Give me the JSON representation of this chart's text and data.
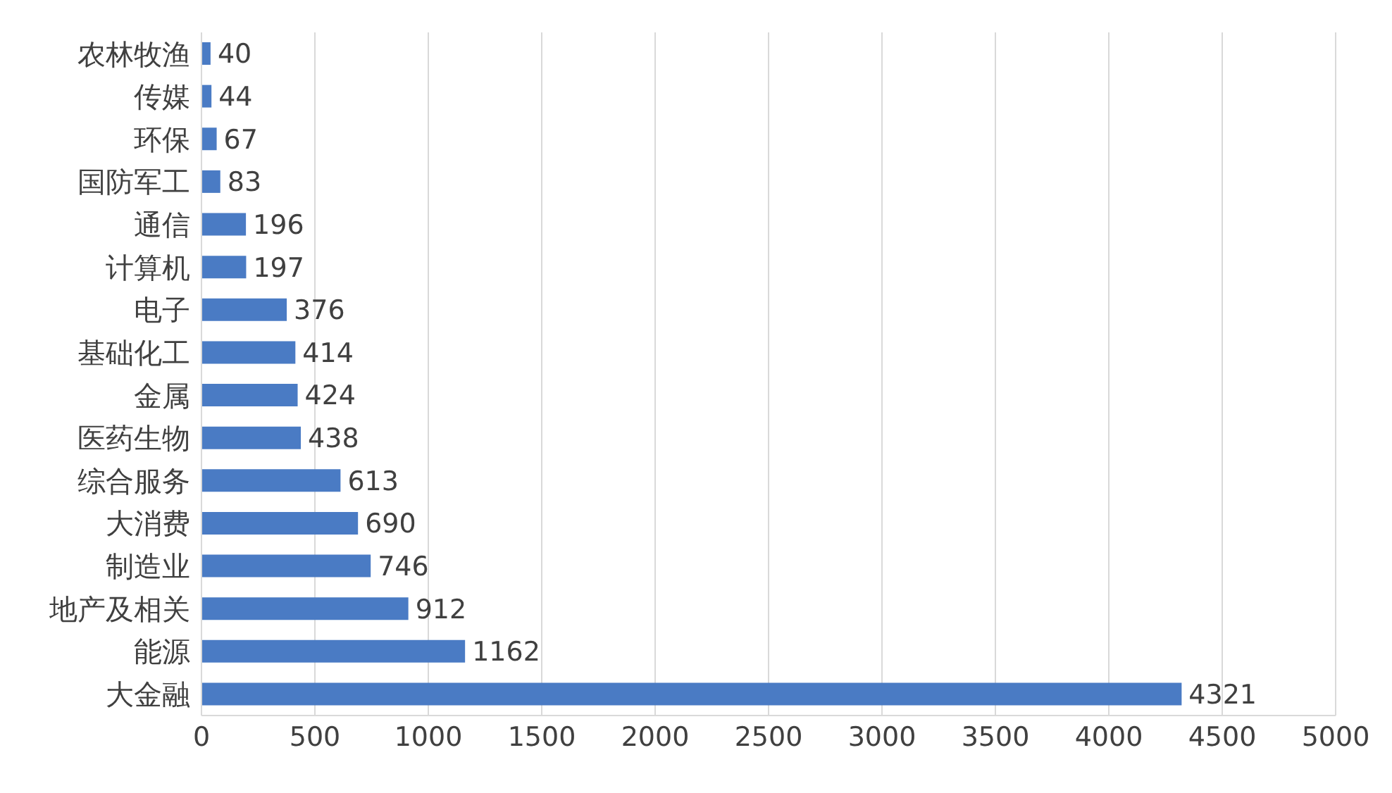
{
  "chart_data": {
    "type": "bar",
    "orientation": "horizontal",
    "categories": [
      "农林牧渔",
      "传媒",
      "环保",
      "国防军工",
      "通信",
      "计算机",
      "电子",
      "基础化工",
      "金属",
      "医药生物",
      "综合服务",
      "大消费",
      "制造业",
      "地产及相关",
      "能源",
      "大金融"
    ],
    "values": [
      40,
      44,
      67,
      83,
      196,
      197,
      376,
      414,
      424,
      438,
      613,
      690,
      746,
      912,
      1162,
      4321
    ],
    "color": "#4a7bc4",
    "xlim": [
      0,
      5000
    ],
    "xticks": [
      0,
      500,
      1000,
      1500,
      2000,
      2500,
      3000,
      3500,
      4000,
      4500,
      5000
    ],
    "grid": "x",
    "data_labels": true
  }
}
